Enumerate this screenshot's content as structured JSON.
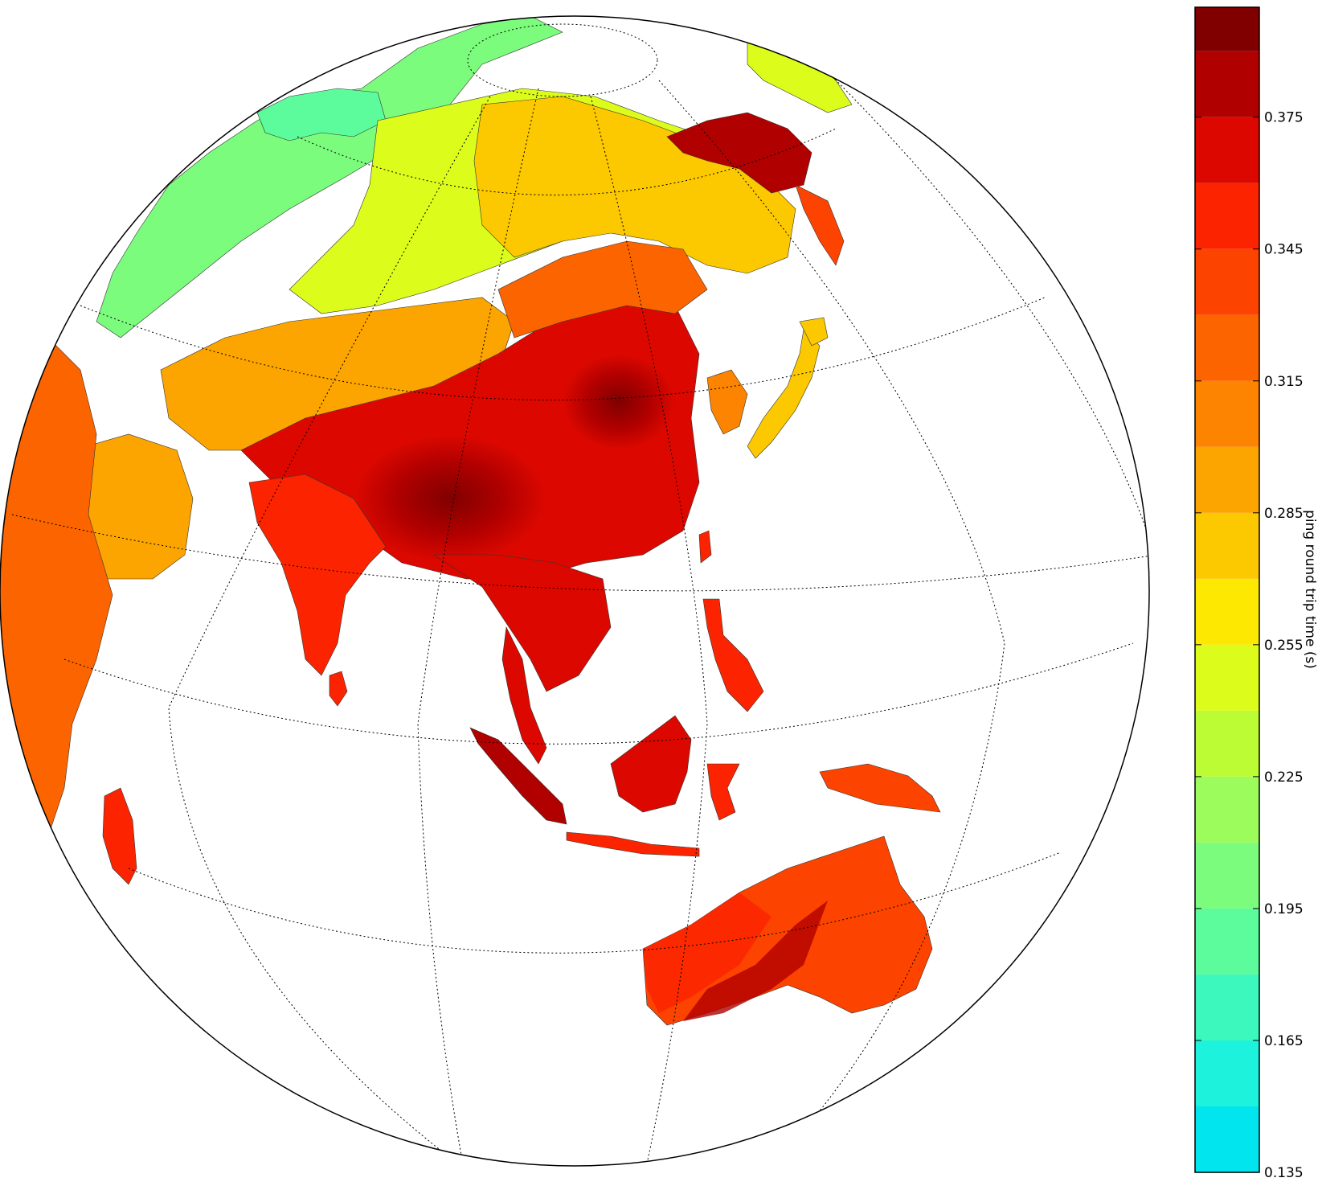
{
  "map": {
    "projection": "orthographic",
    "graticule": "dotted",
    "coastlines": true,
    "borders": true,
    "variable": "ping round trip time"
  },
  "colorbar": {
    "label": "ping round trip time (s)",
    "min": 0.135,
    "max": 0.4,
    "step": 0.015,
    "ticks": [
      "0.135",
      "0.165",
      "0.195",
      "0.225",
      "0.255",
      "0.285",
      "0.315",
      "0.345",
      "0.375"
    ],
    "tick_values": [
      0.135,
      0.165,
      0.195,
      0.225,
      0.255,
      0.285,
      0.315,
      0.345,
      0.375
    ],
    "colors": [
      "#00e5ee",
      "#1cf2dc",
      "#3cf8bc",
      "#5cfc9c",
      "#7cfc7c",
      "#9cfc5c",
      "#bcfc34",
      "#dcfc1c",
      "#fce800",
      "#fcc800",
      "#fca400",
      "#fc8400",
      "#fc6400",
      "#fc4400",
      "#fc2400",
      "#dc0800",
      "#b00000",
      "#800000"
    ]
  }
}
